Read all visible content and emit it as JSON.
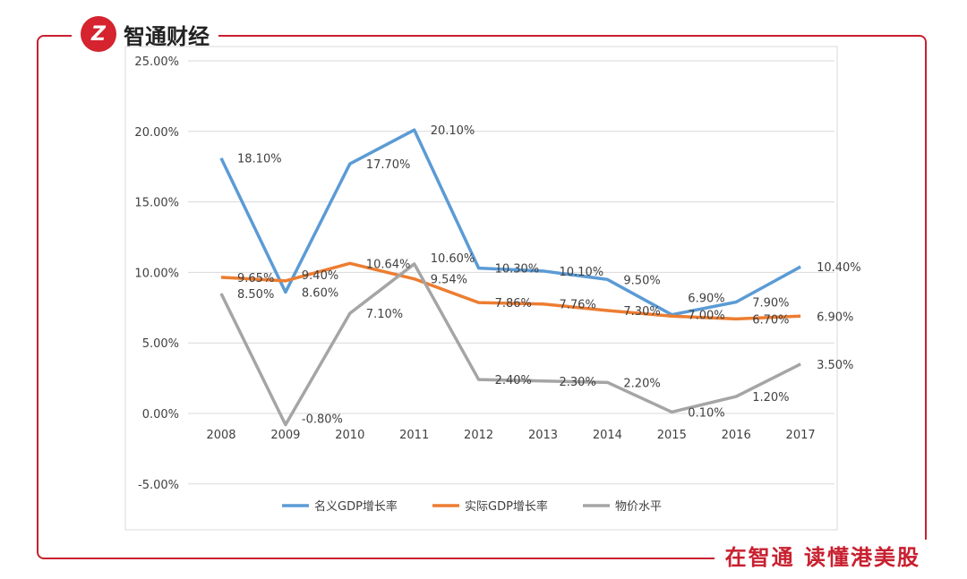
{
  "brand": {
    "logo_text": "智通财经",
    "slogan": "在智通 读懂港美股",
    "accent": "#c8202f"
  },
  "chart_data": {
    "type": "line",
    "categories": [
      "2008",
      "2009",
      "2010",
      "2011",
      "2012",
      "2013",
      "2014",
      "2015",
      "2016",
      "2017"
    ],
    "ylim": [
      -5,
      25
    ],
    "yticks": [
      "-5.00%",
      "0.00%",
      "5.00%",
      "10.00%",
      "15.00%",
      "20.00%",
      "25.00%"
    ],
    "grid": true,
    "legend_placement": "bottom",
    "series": [
      {
        "name": "名义GDP增长率",
        "color": "#5b9bd5",
        "values": [
          18.1,
          8.6,
          17.7,
          20.1,
          10.3,
          10.1,
          9.5,
          7.0,
          7.9,
          10.4
        ],
        "labels": [
          "18.10%",
          "8.60%",
          "17.70%",
          "20.10%",
          "10.30%",
          "10.10%",
          "9.50%",
          "7.00%",
          "7.90%",
          "10.40%"
        ]
      },
      {
        "name": "实际GDP增长率",
        "color": "#ed7d31",
        "values": [
          9.65,
          9.4,
          10.64,
          9.54,
          7.86,
          7.76,
          7.3,
          6.9,
          6.7,
          6.9
        ],
        "labels": [
          "9.65%",
          "9.40%",
          "10.64%",
          "9.54%",
          "7.86%",
          "7.76%",
          "7.30%",
          "6.90%",
          "6.70%",
          "6.90%"
        ]
      },
      {
        "name": "物价水平",
        "color": "#a5a5a5",
        "values": [
          8.5,
          -0.8,
          7.1,
          10.6,
          2.4,
          2.3,
          2.2,
          0.1,
          1.2,
          3.5
        ],
        "labels": [
          "8.50%",
          "-0.80%",
          "7.10%",
          "10.60%",
          "2.40%",
          "2.30%",
          "2.20%",
          "0.10%",
          "1.20%",
          "3.50%"
        ]
      }
    ]
  }
}
